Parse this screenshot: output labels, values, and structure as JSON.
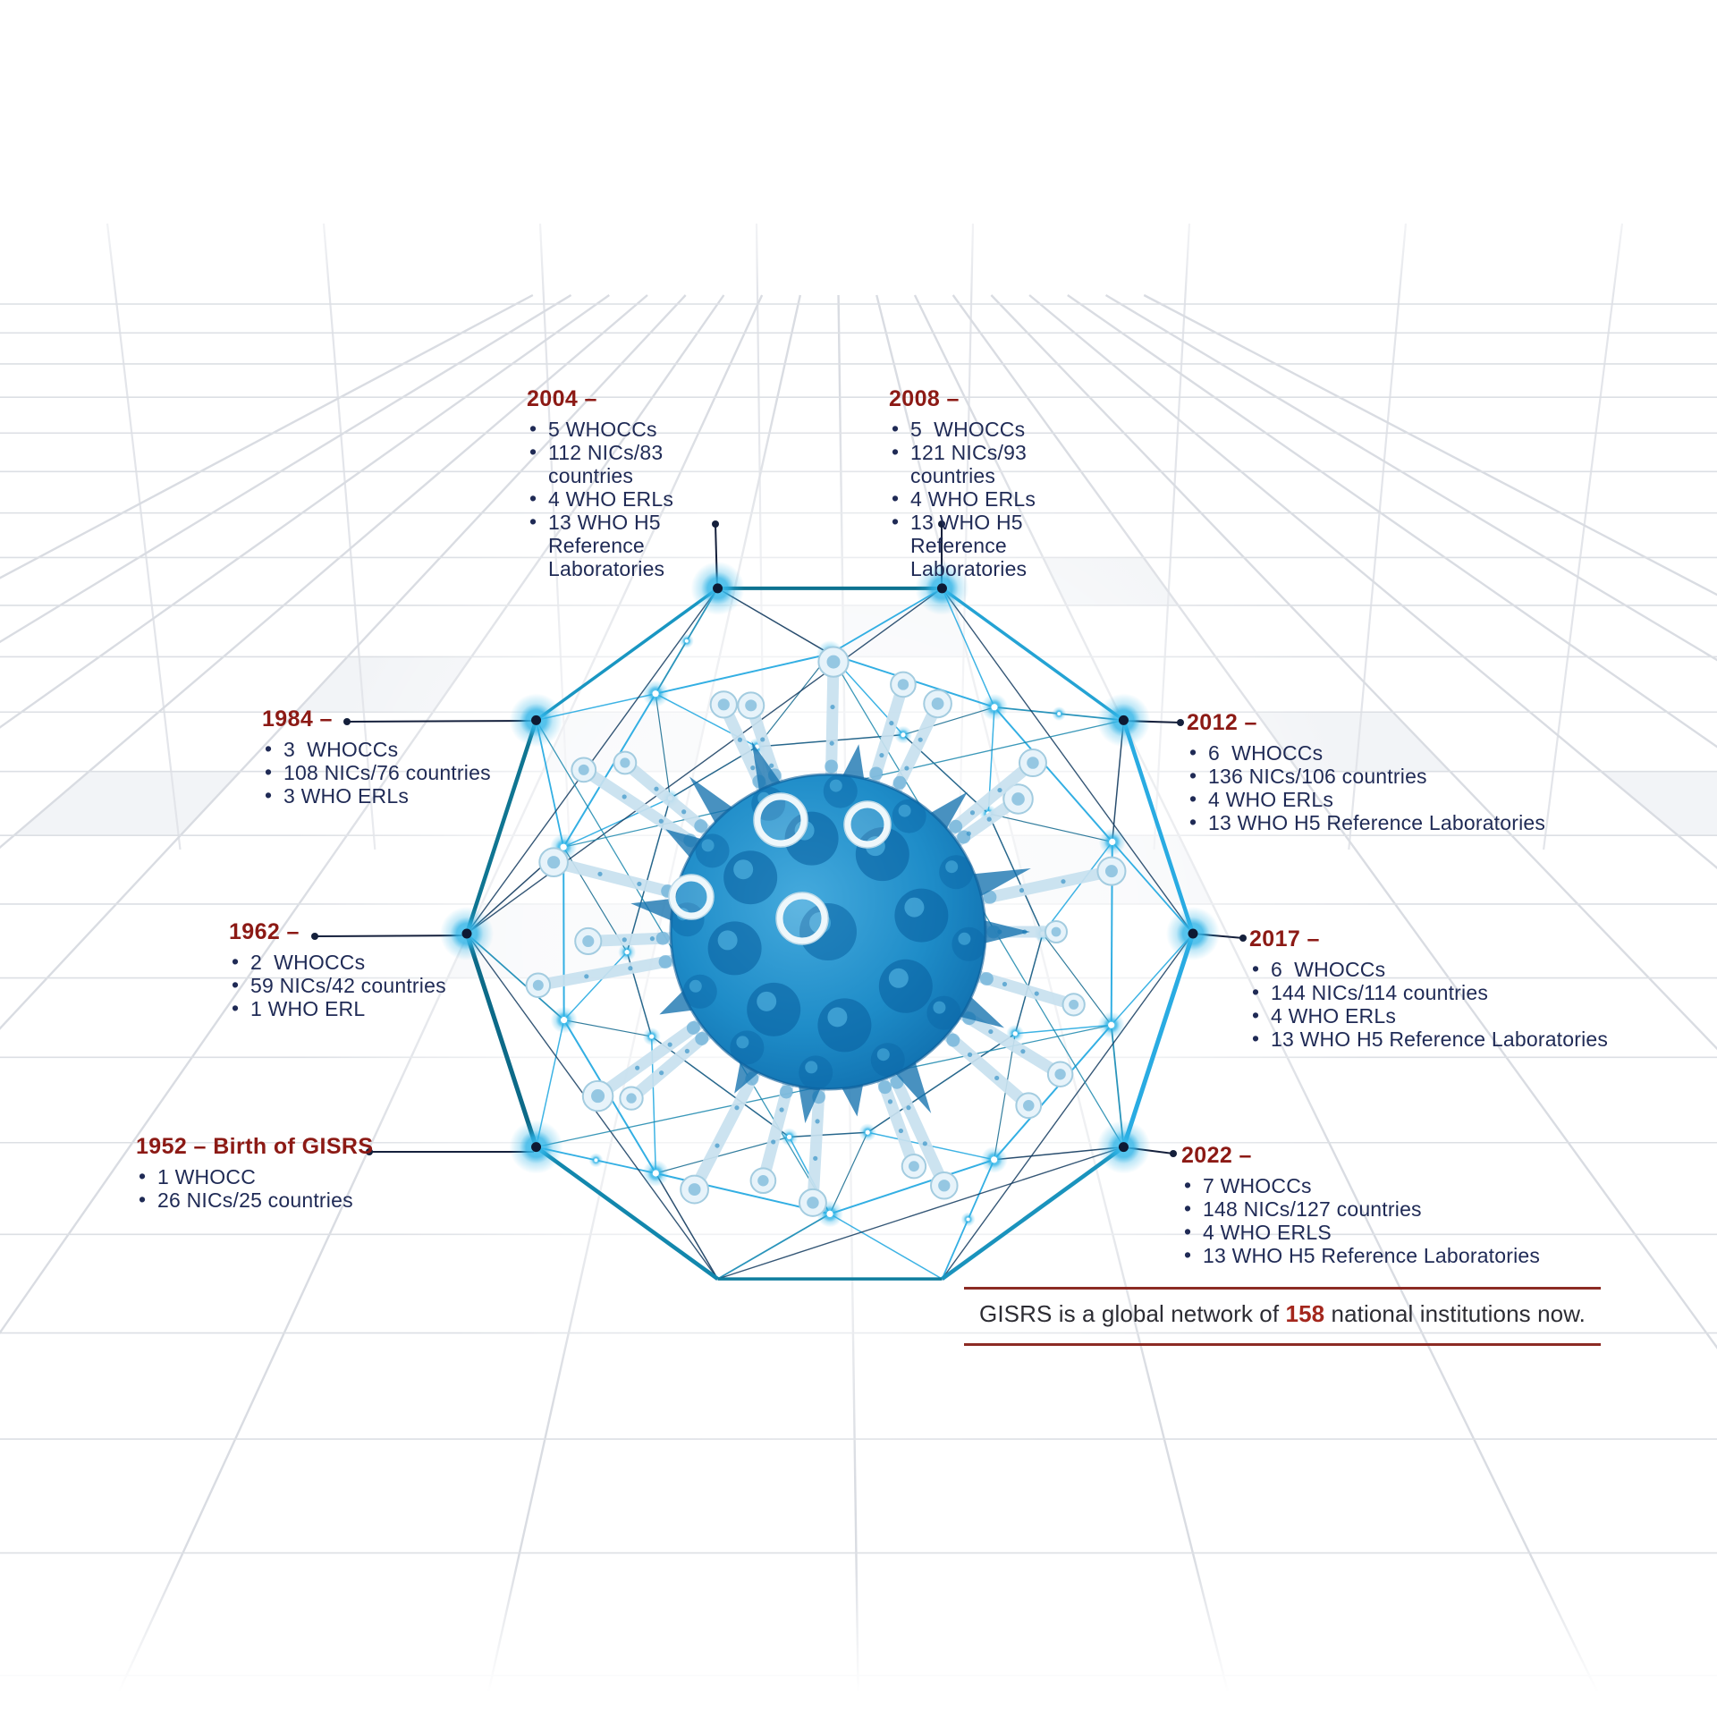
{
  "palette": {
    "heading_red": "#8c1a15",
    "bullet_navy": "#1f2a55",
    "network_cyan": "#29abe2",
    "network_teal": "#0f7492",
    "leader_navy": "#15203c",
    "footer_rule_red": "#8c2b24",
    "footer_highlight_red": "#a4271d",
    "virus_blue": "#0b66a6"
  },
  "timeline": [
    {
      "heading": "1952 – Birth of GISRS",
      "bullets": [
        "1 WHOCC",
        "26 NICs/25 countries"
      ]
    },
    {
      "heading": "1962 –",
      "bullets": [
        "2  WHOCCs",
        "59 NICs/42 countries",
        "1 WHO ERL"
      ]
    },
    {
      "heading": "1984 –",
      "bullets": [
        "3  WHOCCs",
        "108 NICs/76 countries",
        "3 WHO ERLs"
      ]
    },
    {
      "heading": "2004 –",
      "bullets": [
        "5 WHOCCs",
        "112 NICs/83 countries",
        "4 WHO ERLs",
        "13 WHO H5 Reference Laboratories"
      ]
    },
    {
      "heading": "2008 –",
      "bullets": [
        "5  WHOCCs",
        "121 NICs/93 countries",
        "4 WHO ERLs",
        "13 WHO H5 Reference Laboratories"
      ]
    },
    {
      "heading": "2012 –",
      "bullets": [
        "6  WHOCCs",
        "136 NICs/106 countries",
        "4 WHO ERLs",
        "13 WHO H5 Reference Laboratories"
      ]
    },
    {
      "heading": "2017 –",
      "bullets": [
        "6  WHOCCs",
        "144 NICs/114 countries",
        "4 WHO ERLs",
        "13 WHO H5 Reference Laboratories"
      ]
    },
    {
      "heading": "2022 –",
      "bullets": [
        "7 WHOCCs",
        "148 NICs/127 countries",
        "4 WHO ERLS",
        "13 WHO H5 Reference Laboratories"
      ]
    }
  ],
  "footer": {
    "prefix": "GISRS is a global network of ",
    "highlight": "158",
    "suffix": " national institutions now."
  }
}
